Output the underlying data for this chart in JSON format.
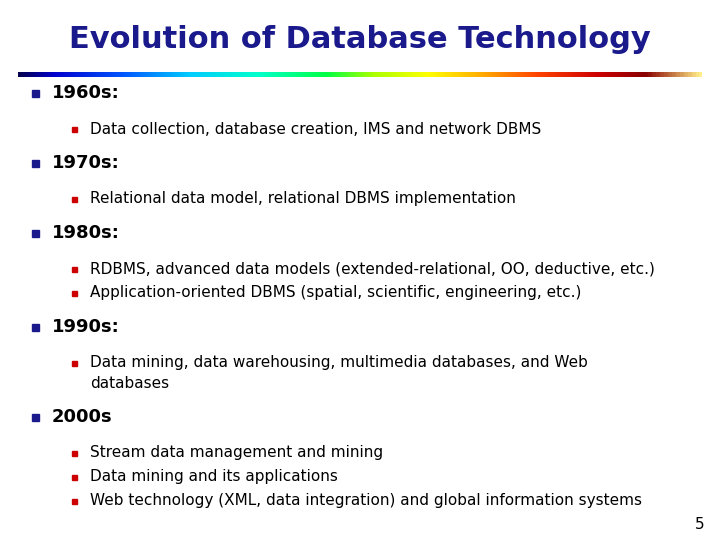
{
  "title": "Evolution of Database Technology",
  "title_color": "#1a1a8c",
  "title_fontsize": 22,
  "background_color": "#ffffff",
  "slide_number": "5",
  "bullet_color": "#1a1a8c",
  "sub_bullet_color": "#cc0000",
  "text_color": "#000000",
  "bullet_fontsize": 13,
  "sub_bullet_fontsize": 11,
  "rainbow_colors": [
    "#000060",
    "#000090",
    "#0000cc",
    "#0040ff",
    "#0088ff",
    "#00ccff",
    "#00ffee",
    "#00ff88",
    "#00ff00",
    "#88ff00",
    "#ccff00",
    "#ffee00",
    "#ffaa00",
    "#ff6600",
    "#ff2200",
    "#cc0000",
    "#880000",
    "#440000",
    "#220000",
    "#660000",
    "#992200",
    "#cc4400",
    "#ee6600",
    "#ffaa00",
    "#ffcc00",
    "#ffee44",
    "#ffff88"
  ],
  "content": [
    {
      "level": 1,
      "text": "1960s:",
      "children": [
        {
          "level": 2,
          "text": "Data collection, database creation, IMS and network DBMS",
          "wrap": false
        }
      ]
    },
    {
      "level": 1,
      "text": "1970s:",
      "children": [
        {
          "level": 2,
          "text": "Relational data model, relational DBMS implementation",
          "wrap": false
        }
      ]
    },
    {
      "level": 1,
      "text": "1980s:",
      "children": [
        {
          "level": 2,
          "text": "RDBMS, advanced data models (extended-relational, OO, deductive, etc.)",
          "wrap": false
        },
        {
          "level": 2,
          "text": "Application-oriented DBMS (spatial, scientific, engineering, etc.)",
          "wrap": false
        }
      ]
    },
    {
      "level": 1,
      "text": "1990s:",
      "children": [
        {
          "level": 2,
          "text": "Data mining, data warehousing, multimedia databases, and Web\ndatabases",
          "wrap": true
        }
      ]
    },
    {
      "level": 1,
      "text": "2000s",
      "children": [
        {
          "level": 2,
          "text": "Stream data management and mining",
          "wrap": false
        },
        {
          "level": 2,
          "text": "Data mining and its applications",
          "wrap": false
        },
        {
          "level": 2,
          "text": "Web technology (XML, data integration) and global information systems",
          "wrap": false
        }
      ]
    }
  ]
}
